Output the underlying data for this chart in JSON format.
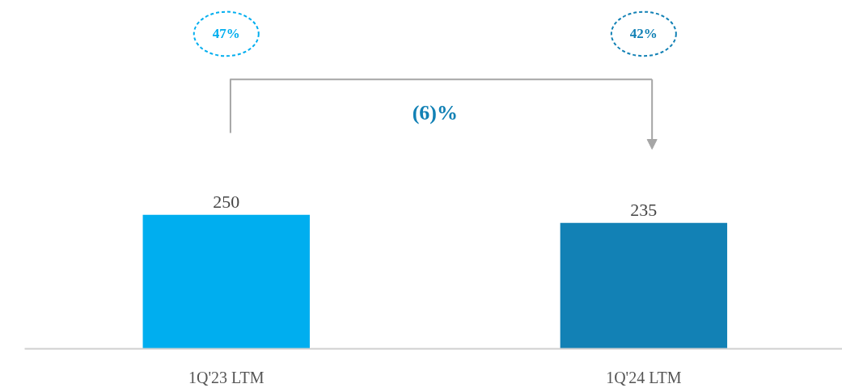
{
  "chart_data": {
    "type": "bar",
    "categories": [
      "1Q'23 LTM",
      "1Q'24 LTM"
    ],
    "values": [
      250,
      235
    ],
    "colors": [
      "#00aeef",
      "#1281b5"
    ],
    "data_labels": true,
    "annotations": [
      "47%",
      "42%",
      "(6)%"
    ]
  }
}
